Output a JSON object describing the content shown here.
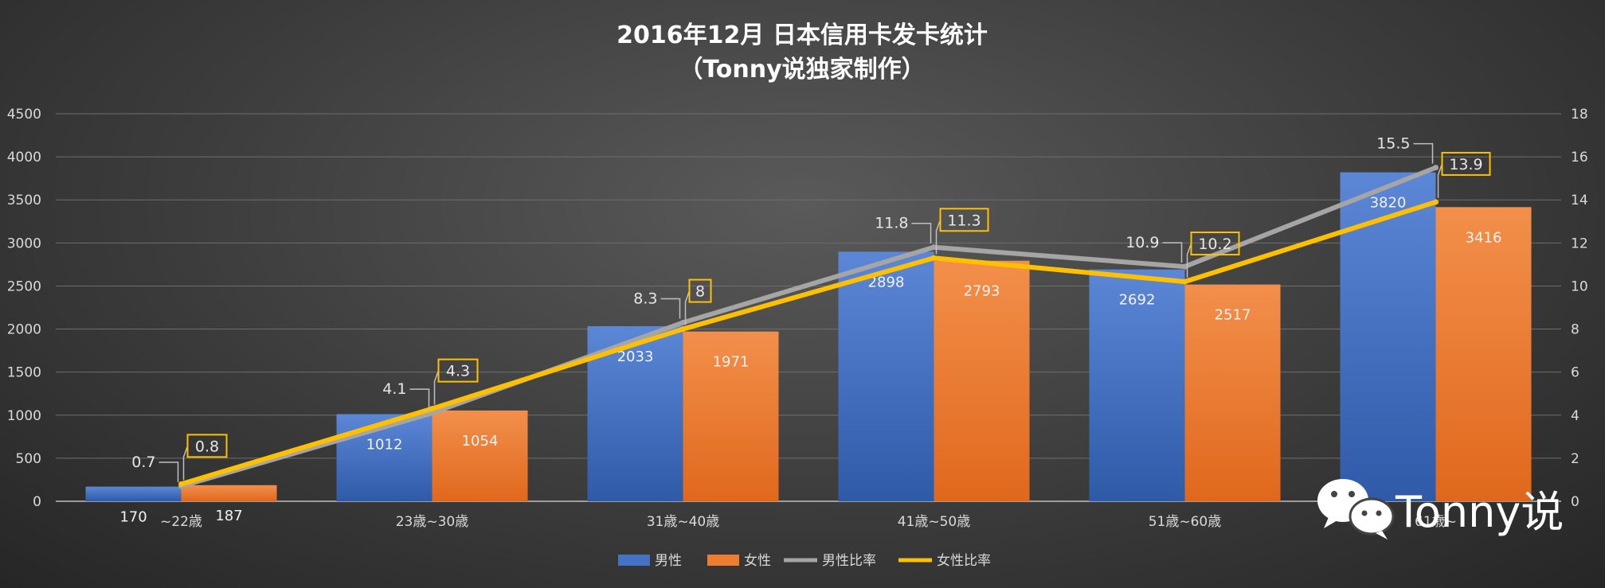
{
  "chart_data": {
    "type": "bar",
    "title": "2016年12月 日本信用卡发卡统计",
    "subtitle": "（Tonny说独家制作）",
    "categories": [
      "~22歳",
      "23歳~30歳",
      "31歳~40歳",
      "41歳~50歳",
      "51歳~60歳",
      "61歳~"
    ],
    "series": [
      {
        "name": "男性",
        "kind": "bar",
        "axis": "left",
        "color": "#4472c4",
        "values": [
          170,
          1012,
          2033,
          2898,
          2692,
          3820
        ]
      },
      {
        "name": "女性",
        "kind": "bar",
        "axis": "left",
        "color": "#ed7d31",
        "values": [
          187,
          1054,
          1971,
          2793,
          2517,
          3416
        ]
      },
      {
        "name": "男性比率",
        "kind": "line",
        "axis": "right",
        "color": "#a5a5a5",
        "values": [
          0.7,
          4.1,
          8.3,
          11.8,
          10.9,
          15.5
        ]
      },
      {
        "name": "女性比率",
        "kind": "line",
        "axis": "right",
        "color": "#ffc000",
        "values": [
          0.8,
          4.3,
          8,
          11.3,
          10.2,
          13.9
        ]
      }
    ],
    "y_left": {
      "ylim": [
        0,
        4500
      ],
      "ticks": [
        0,
        500,
        1000,
        1500,
        2000,
        2500,
        3000,
        3500,
        4000,
        4500
      ]
    },
    "y_right": {
      "ylim": [
        0,
        18
      ],
      "ticks": [
        0,
        2,
        4,
        6,
        8,
        10,
        12,
        14,
        16,
        18
      ]
    },
    "grid": true,
    "legend_position": "bottom"
  },
  "watermark": {
    "text": "Tonny说",
    "icon": "wechat-icon"
  }
}
